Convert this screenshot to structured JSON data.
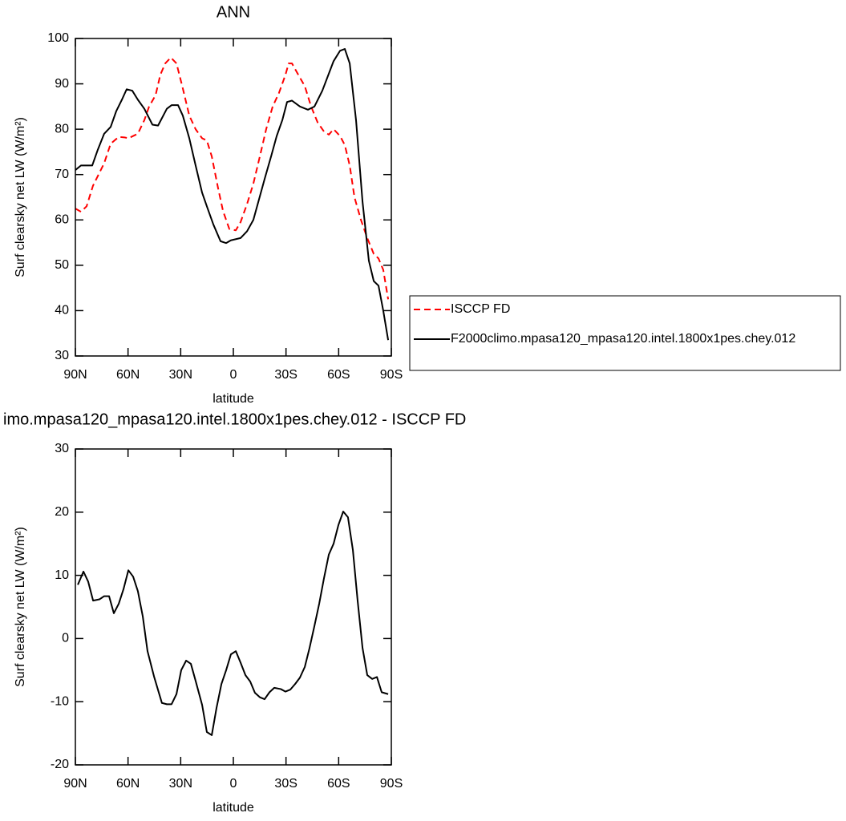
{
  "chart_data": [
    {
      "type": "line",
      "title": "ANN",
      "xlabel": "latitude",
      "ylabel": "Surf clearsky net LW (W/m²)",
      "xlim": [
        90,
        -90
      ],
      "ylim": [
        30,
        100
      ],
      "xticks": [
        {
          "value": 90,
          "label": "90N"
        },
        {
          "value": 60,
          "label": "60N"
        },
        {
          "value": 30,
          "label": "30N"
        },
        0,
        {
          "value": -30,
          "label": "30S"
        },
        {
          "value": -60,
          "label": "60S"
        },
        {
          "value": -90,
          "label": "90S"
        }
      ],
      "yticks": [
        30,
        40,
        50,
        60,
        70,
        80,
        90,
        100
      ],
      "legend": "outside-right",
      "series": [
        {
          "name": "ISCCP FD",
          "color": "#ff0000",
          "style": "dashed",
          "x": [
            90,
            86.8,
            83.6,
            80,
            73.6,
            69.9,
            65.3,
            62.1,
            59.8,
            54.4,
            50.7,
            48,
            44.3,
            41.6,
            38.8,
            35.6,
            32.4,
            28.8,
            25.1,
            21.5,
            17.8,
            15.1,
            12.3,
            8.7,
            5.9,
            2.3,
            -1.4,
            -4.1,
            -7.8,
            -11.4,
            -15.1,
            -18.7,
            -22.4,
            -26,
            -29.7,
            -31.5,
            -33.4,
            -37,
            -40.7,
            -44.3,
            -48,
            -51.6,
            -54.4,
            -57.1,
            -60.8,
            -63.5,
            -66.3,
            -69,
            -72.7,
            -76.3,
            -80,
            -82.7,
            -85.4,
            -88.2
          ],
          "values": [
            62.5,
            61.8,
            63,
            67.5,
            72.5,
            76.8,
            78.3,
            78.2,
            78,
            79,
            82,
            85,
            87.5,
            92,
            94.5,
            95.8,
            94.5,
            89,
            83,
            80,
            78,
            77.5,
            74,
            67,
            62,
            58,
            57.7,
            59.5,
            63.5,
            68,
            74,
            80,
            85,
            88,
            92,
            94.5,
            94.5,
            92,
            89.5,
            85,
            81.5,
            79.5,
            78.8,
            80,
            78.5,
            76.5,
            72,
            65,
            60,
            56,
            52.5,
            51.5,
            49,
            42.5
          ]
        },
        {
          "name": "F2000climo.mpasa120_mpasa120.intel.1800x1pes.chey.012",
          "color": "#000000",
          "style": "solid",
          "x": [
            90,
            86.8,
            80.4,
            77.2,
            73.6,
            69.9,
            66.7,
            63.5,
            60.8,
            57.6,
            54.4,
            50.7,
            46.1,
            42.9,
            37.9,
            35.2,
            31.5,
            28.8,
            25.1,
            21.5,
            17.8,
            15.1,
            11.4,
            7.3,
            4.1,
            1.4,
            -4.1,
            -7.8,
            -11.4,
            -17.8,
            -21.5,
            -24.7,
            -27.9,
            -30.6,
            -33.4,
            -37.9,
            -42.5,
            -46.2,
            -50.7,
            -57.1,
            -60.8,
            -63.5,
            -66.3,
            -69.9,
            -73.6,
            -77.2,
            -80,
            -82.7,
            -85.4,
            -88.2
          ],
          "values": [
            71,
            72,
            72,
            75.5,
            79,
            80.5,
            84,
            86.5,
            88.8,
            88.5,
            86.5,
            84.5,
            81,
            80.8,
            84.5,
            85.3,
            85.3,
            83,
            78,
            72,
            66,
            63,
            59,
            55.3,
            54.9,
            55.5,
            56,
            57.5,
            60,
            69,
            74,
            78.5,
            82,
            86,
            86.3,
            85,
            84.3,
            85,
            88.5,
            95,
            97.3,
            97.7,
            94.5,
            82,
            64,
            51,
            46.5,
            45.5,
            40,
            33.5
          ]
        }
      ]
    },
    {
      "type": "line",
      "title": "imo.mpasa120_mpasa120.intel.1800x1pes.chey.012 - ISCCP FD",
      "xlabel": "latitude",
      "ylabel": "Surf clearsky net LW (W/m²)",
      "xlim": [
        90,
        -90
      ],
      "ylim": [
        -20,
        30
      ],
      "xticks": [
        {
          "value": 90,
          "label": "90N"
        },
        {
          "value": 60,
          "label": "60N"
        },
        {
          "value": 30,
          "label": "30N"
        },
        0,
        {
          "value": -30,
          "label": "30S"
        },
        {
          "value": -60,
          "label": "60S"
        },
        {
          "value": -90,
          "label": "90S"
        }
      ],
      "yticks": [
        -20,
        -10,
        0,
        10,
        20,
        30
      ],
      "series": [
        {
          "color": "#000000",
          "style": "solid",
          "x": [
            88.6,
            85.4,
            82.7,
            79.9,
            76.3,
            73.6,
            70.8,
            68.1,
            65.3,
            62.6,
            59.8,
            57.1,
            54.4,
            51.6,
            48.9,
            45.2,
            40.7,
            37.9,
            35.2,
            32.4,
            29.7,
            26.9,
            24.2,
            21.5,
            17.8,
            15.1,
            12.3,
            9.6,
            6.8,
            4.1,
            1.4,
            -1.4,
            -4.1,
            -6.9,
            -9.6,
            -12.3,
            -15.1,
            -17.8,
            -20.6,
            -23.3,
            -27,
            -29.7,
            -32.4,
            -35.2,
            -37.9,
            -40.7,
            -43.4,
            -46.2,
            -48.9,
            -51.6,
            -54.4,
            -57.1,
            -59.9,
            -62.6,
            -65.3,
            -68.1,
            -70.8,
            -73.6,
            -76.3,
            -79.1,
            -81.8,
            -84.5,
            -88.2
          ],
          "values": [
            8.5,
            10.6,
            9,
            6,
            6.2,
            6.7,
            6.7,
            4,
            5.5,
            7.8,
            10.8,
            9.8,
            7.5,
            3.5,
            -2,
            -6,
            -10.2,
            -10.4,
            -10.4,
            -8.8,
            -5,
            -3.5,
            -4,
            -6.7,
            -10.5,
            -14.8,
            -15.3,
            -11,
            -7.2,
            -5,
            -2.5,
            -2,
            -3.8,
            -5.8,
            -6.8,
            -8.6,
            -9.3,
            -9.6,
            -8.5,
            -7.8,
            -8,
            -8.4,
            -8.1,
            -7.2,
            -6.2,
            -4.5,
            -1.5,
            2,
            5.5,
            9.5,
            13.3,
            15,
            18,
            20.1,
            19.2,
            14,
            6,
            -1.5,
            -5.8,
            -6.4,
            -6.1,
            -8.5,
            -8.8
          ]
        }
      ]
    }
  ]
}
